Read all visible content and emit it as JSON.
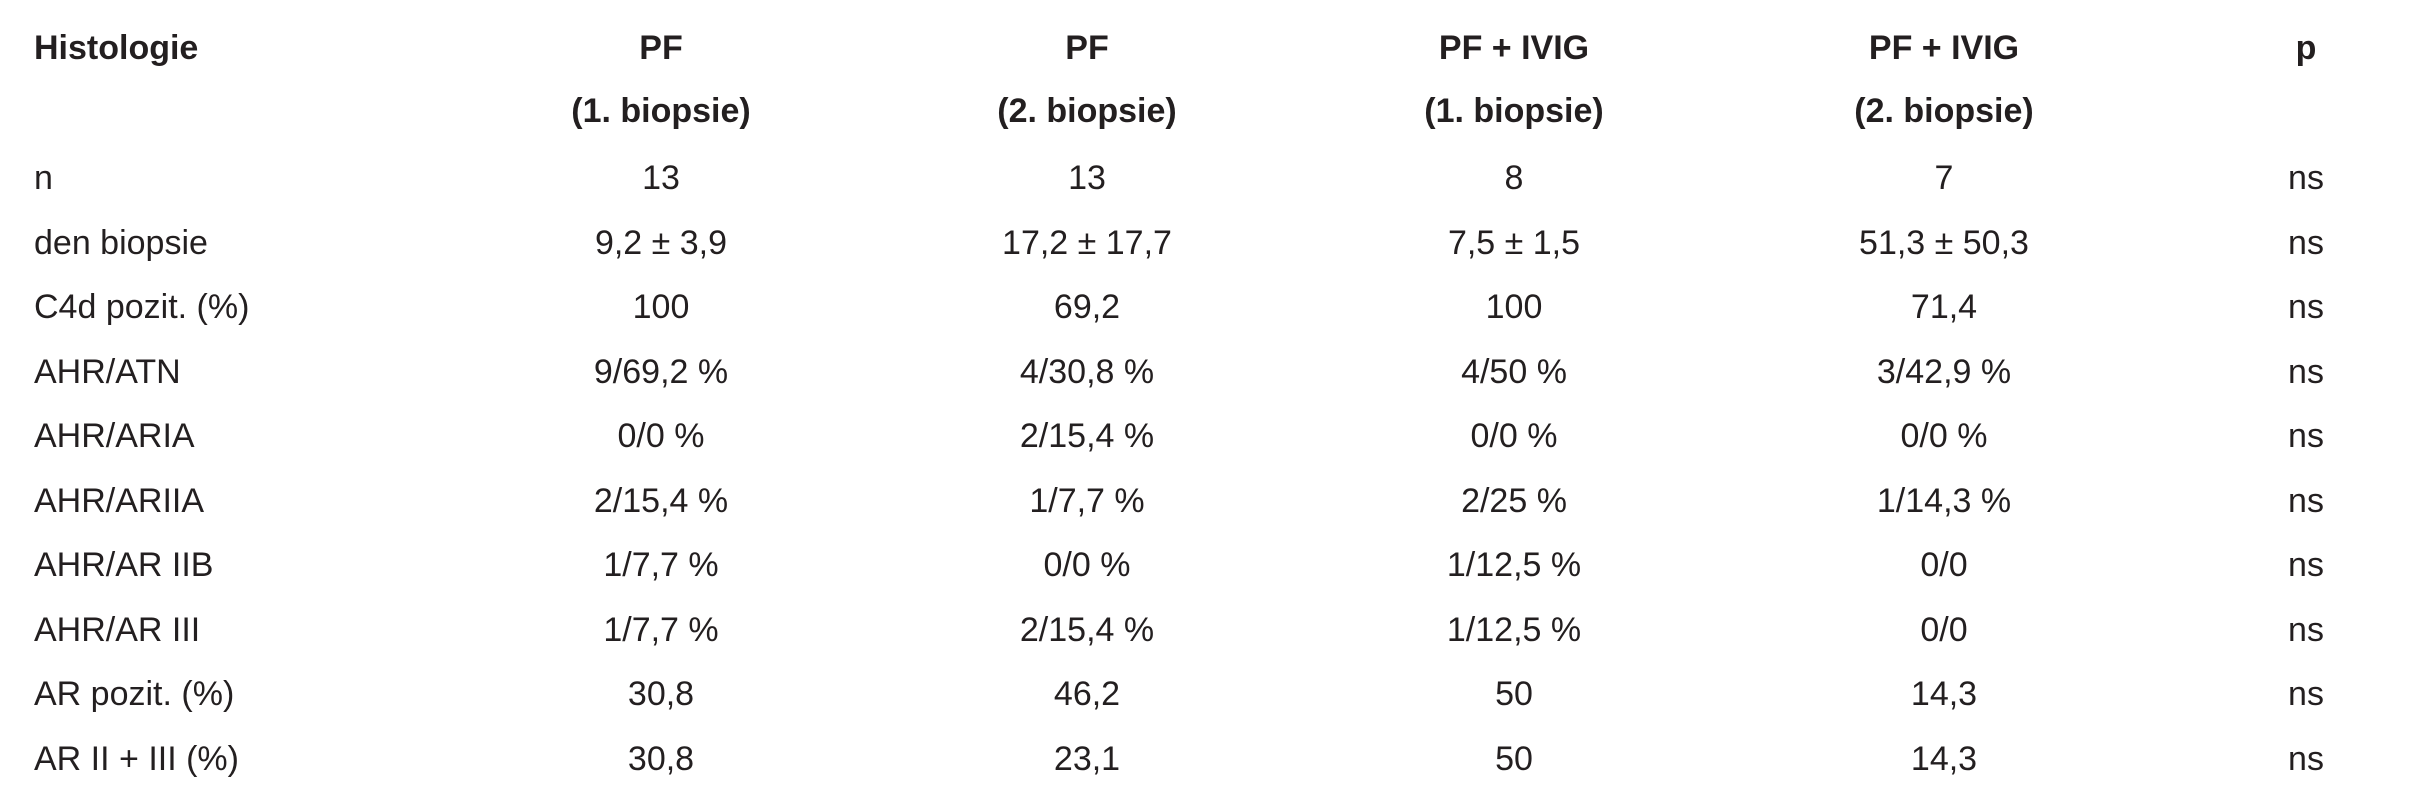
{
  "table": {
    "header": [
      [
        "Histologie"
      ],
      [
        "PF",
        "(1. biopsie)"
      ],
      [
        "PF",
        "(2. biopsie)"
      ],
      [
        "PF + IVIG",
        "(1. biopsie)"
      ],
      [
        "PF + IVIG",
        "(2. biopsie)"
      ],
      [
        "p"
      ]
    ],
    "rows": [
      [
        "n",
        "13",
        "13",
        "8",
        "7",
        "ns"
      ],
      [
        "den biopsie",
        "9,2 ± 3,9",
        "17,2 ± 17,7",
        "7,5 ± 1,5",
        "51,3 ± 50,3",
        "ns"
      ],
      [
        "C4d pozit. (%)",
        "100",
        "69,2",
        "100",
        "71,4",
        "ns"
      ],
      [
        "AHR/ATN",
        "9/69,2 %",
        "4/30,8 %",
        "4/50 %",
        "3/42,9 %",
        "ns"
      ],
      [
        "AHR/ARIA",
        "0/0 %",
        "2/15,4 %",
        "0/0 %",
        "0/0 %",
        "ns"
      ],
      [
        "AHR/ARIIA",
        "2/15,4 %",
        "1/7,7 %",
        "2/25 %",
        "1/14,3 %",
        "ns"
      ],
      [
        "AHR/AR IIB",
        "1/7,7 %",
        "0/0 %",
        "1/12,5 %",
        "0/0",
        "ns"
      ],
      [
        "AHR/AR III",
        "1/7,7 %",
        "2/15,4 %",
        "1/12,5 %",
        "0/0",
        "ns"
      ],
      [
        "AR pozit. (%)",
        "30,8",
        "46,2",
        "50",
        "14,3",
        "ns"
      ],
      [
        "AR II + III (%)",
        "30,8",
        "23,1",
        "50",
        "14,3",
        "ns"
      ]
    ]
  }
}
